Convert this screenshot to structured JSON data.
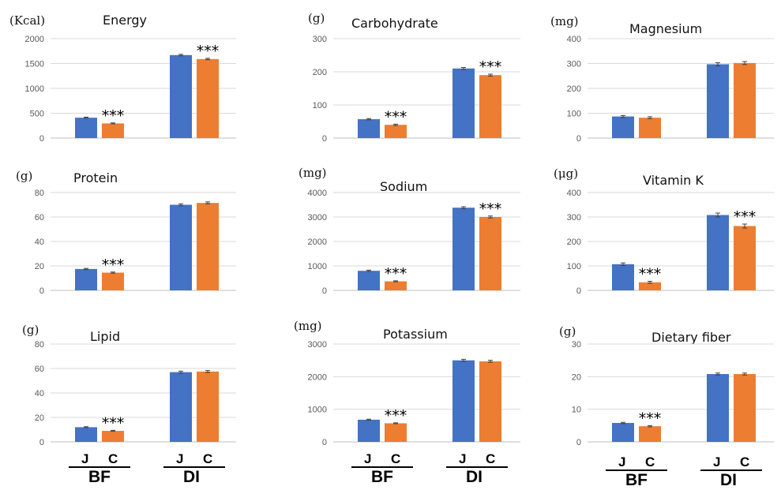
{
  "chart_data": [
    {
      "type": "bar",
      "title": "Energy",
      "ylabel": "(Kcal)",
      "ylim": [
        0,
        2000
      ],
      "yticks": [
        0,
        500,
        1000,
        1500,
        2000
      ],
      "categories": [
        "BF",
        "DI"
      ],
      "series": [
        {
          "name": "J",
          "values": [
            410,
            1670
          ]
        },
        {
          "name": "C",
          "values": [
            295,
            1590
          ]
        }
      ],
      "errors": [
        [
          10,
          15
        ],
        [
          10,
          15
        ]
      ],
      "significance": [
        "***",
        "***"
      ]
    },
    {
      "type": "bar",
      "title": "Carbohydrate",
      "ylabel": "(g)",
      "ylim": [
        0,
        300
      ],
      "yticks": [
        0,
        100,
        200,
        300
      ],
      "categories": [
        "BF",
        "DI"
      ],
      "series": [
        {
          "name": "J",
          "values": [
            57,
            210
          ]
        },
        {
          "name": "C",
          "values": [
            40,
            190
          ]
        }
      ],
      "errors": [
        [
          2,
          3
        ],
        [
          2,
          3
        ]
      ],
      "significance": [
        "***",
        "***"
      ]
    },
    {
      "type": "bar",
      "title": "Magnesium",
      "ylabel": "(mg)",
      "ylim": [
        0,
        400
      ],
      "yticks": [
        0,
        100,
        200,
        300,
        400
      ],
      "categories": [
        "BF",
        "DI"
      ],
      "series": [
        {
          "name": "J",
          "values": [
            87,
            297
          ]
        },
        {
          "name": "C",
          "values": [
            82,
            302
          ]
        }
      ],
      "errors": [
        [
          4,
          6
        ],
        [
          4,
          6
        ]
      ],
      "significance": [
        "",
        ""
      ]
    },
    {
      "type": "bar",
      "title": "Protein",
      "ylabel": "(g)",
      "ylim": [
        0,
        80
      ],
      "yticks": [
        0,
        20,
        40,
        60,
        80
      ],
      "categories": [
        "BF",
        "DI"
      ],
      "series": [
        {
          "name": "J",
          "values": [
            17.5,
            70
          ]
        },
        {
          "name": "C",
          "values": [
            14.5,
            71.5
          ]
        }
      ],
      "errors": [
        [
          0.5,
          0.8
        ],
        [
          0.5,
          0.8
        ]
      ],
      "significance": [
        "***",
        ""
      ]
    },
    {
      "type": "bar",
      "title": "Sodium",
      "ylabel": "(mg)",
      "ylim": [
        0,
        4000
      ],
      "yticks": [
        0,
        1000,
        2000,
        3000,
        4000
      ],
      "categories": [
        "BF",
        "DI"
      ],
      "series": [
        {
          "name": "J",
          "values": [
            800,
            3380
          ]
        },
        {
          "name": "C",
          "values": [
            370,
            3000
          ]
        }
      ],
      "errors": [
        [
          25,
          40
        ],
        [
          20,
          40
        ]
      ],
      "significance": [
        "***",
        "***"
      ]
    },
    {
      "type": "bar",
      "title": "Vitamin K",
      "ylabel": "(μg)",
      "ylim": [
        0,
        400
      ],
      "yticks": [
        0,
        100,
        200,
        300,
        400
      ],
      "categories": [
        "BF",
        "DI"
      ],
      "series": [
        {
          "name": "J",
          "values": [
            107,
            308
          ]
        },
        {
          "name": "C",
          "values": [
            33,
            263
          ]
        }
      ],
      "errors": [
        [
          5,
          8
        ],
        [
          4,
          8
        ]
      ],
      "significance": [
        "***",
        "***"
      ]
    },
    {
      "type": "bar",
      "title": "Lipid",
      "ylabel": "(g)",
      "ylim": [
        0,
        80
      ],
      "yticks": [
        0,
        20,
        40,
        60,
        80
      ],
      "categories": [
        "BF",
        "DI"
      ],
      "series": [
        {
          "name": "J",
          "values": [
            12,
            57
          ]
        },
        {
          "name": "C",
          "values": [
            9,
            57.5
          ]
        }
      ],
      "errors": [
        [
          0.4,
          0.8
        ],
        [
          0.4,
          0.8
        ]
      ],
      "significance": [
        "***",
        ""
      ]
    },
    {
      "type": "bar",
      "title": "Potassium",
      "ylabel": "(mg)",
      "ylim": [
        0,
        3000
      ],
      "yticks": [
        0,
        1000,
        2000,
        3000
      ],
      "categories": [
        "BF",
        "DI"
      ],
      "series": [
        {
          "name": "J",
          "values": [
            680,
            2500
          ]
        },
        {
          "name": "C",
          "values": [
            570,
            2470
          ]
        }
      ],
      "errors": [
        [
          15,
          30
        ],
        [
          15,
          30
        ]
      ],
      "significance": [
        "***",
        ""
      ]
    },
    {
      "type": "bar",
      "title": "Dietary fiber",
      "ylabel": "(g)",
      "ylim": [
        0,
        30
      ],
      "yticks": [
        0,
        10,
        20,
        30
      ],
      "categories": [
        "BF",
        "DI"
      ],
      "series": [
        {
          "name": "J",
          "values": [
            5.8,
            20.8
          ]
        },
        {
          "name": "C",
          "values": [
            4.8,
            20.8
          ]
        }
      ],
      "errors": [
        [
          0.2,
          0.3
        ],
        [
          0.2,
          0.3
        ]
      ],
      "significance": [
        "***",
        ""
      ]
    }
  ],
  "series_colors": {
    "J": "#4472c4",
    "C": "#ed7d31"
  },
  "group_labels": {
    "j": "J",
    "c": "C",
    "bf": "BF",
    "di": "DI"
  }
}
